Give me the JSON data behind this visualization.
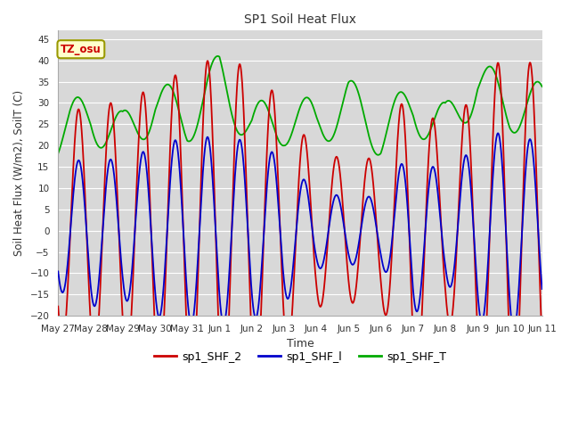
{
  "title": "SP1 Soil Heat Flux",
  "xlabel": "Time",
  "ylabel": "Soil Heat Flux (W/m2), SoilT (C)",
  "ylim": [
    -20,
    47
  ],
  "yticks": [
    -20,
    -15,
    -10,
    -5,
    0,
    5,
    10,
    15,
    20,
    25,
    30,
    35,
    40,
    45
  ],
  "plot_bg_color": "#d8d8d8",
  "fig_bg_color": "#ffffff",
  "grid_color": "#ffffff",
  "legend_labels": [
    "sp1_SHF_2",
    "sp1_SHF_l",
    "sp1_SHF_T"
  ],
  "tz_label": "TZ_osu",
  "tz_box_color": "#ffffcc",
  "tz_text_color": "#cc0000",
  "tz_edge_color": "#999900",
  "x_tick_labels": [
    "May 27",
    "May 28",
    "May 29",
    "May 30",
    "May 31",
    "Jun 1",
    "Jun 2",
    "Jun 3",
    "Jun 4",
    "Jun 5",
    "Jun 6",
    "Jun 7",
    "Jun 8",
    "Jun 9",
    "Jun 10",
    "Jun 11"
  ],
  "color_red": "#cc0000",
  "color_blue": "#0000cc",
  "color_green": "#00aa00",
  "linewidth": 1.3
}
